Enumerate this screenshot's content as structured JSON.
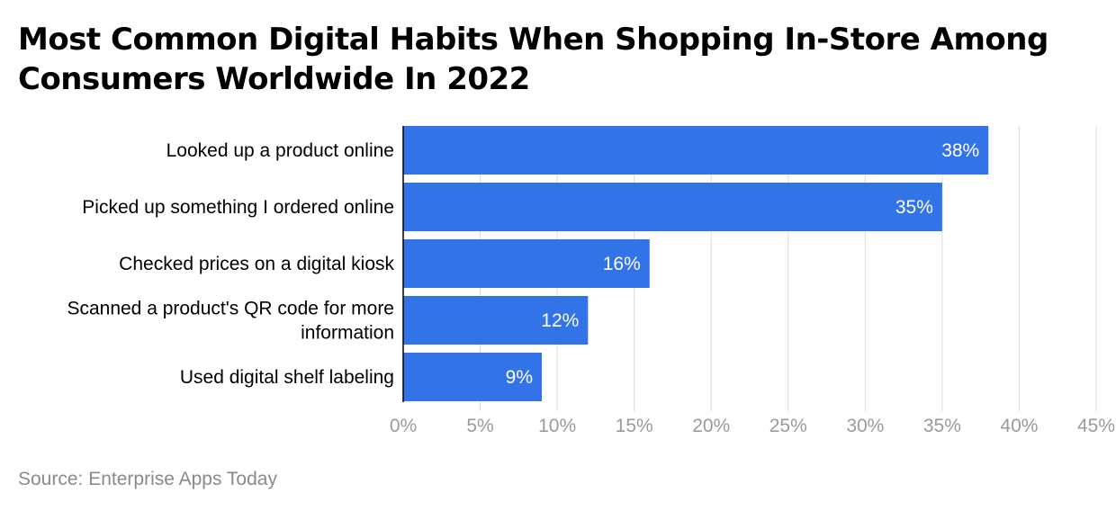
{
  "chart_data": {
    "type": "bar",
    "orientation": "horizontal",
    "title": "Most Common Digital Habits When Shopping In-Store Among Consumers Worldwide In 2022",
    "categories": [
      "Looked up a product online",
      "Picked up something I ordered online",
      "Checked prices on a digital kiosk",
      "Scanned a product's QR code for more information",
      "Used digital shelf labeling"
    ],
    "values": [
      38,
      35,
      16,
      12,
      9
    ],
    "value_labels": [
      "38%",
      "35%",
      "16%",
      "12%",
      "9%"
    ],
    "xlim": [
      0,
      45
    ],
    "x_ticks": [
      0,
      5,
      10,
      15,
      20,
      25,
      30,
      35,
      40,
      45
    ],
    "x_tick_labels": [
      "0%",
      "5%",
      "10%",
      "15%",
      "20%",
      "25%",
      "30%",
      "35%",
      "40%",
      "45%"
    ],
    "xlabel": "",
    "ylabel": "",
    "grid": true,
    "legend": "none",
    "bar_color": "#3373e8",
    "source": "Source: Enterprise Apps Today"
  }
}
